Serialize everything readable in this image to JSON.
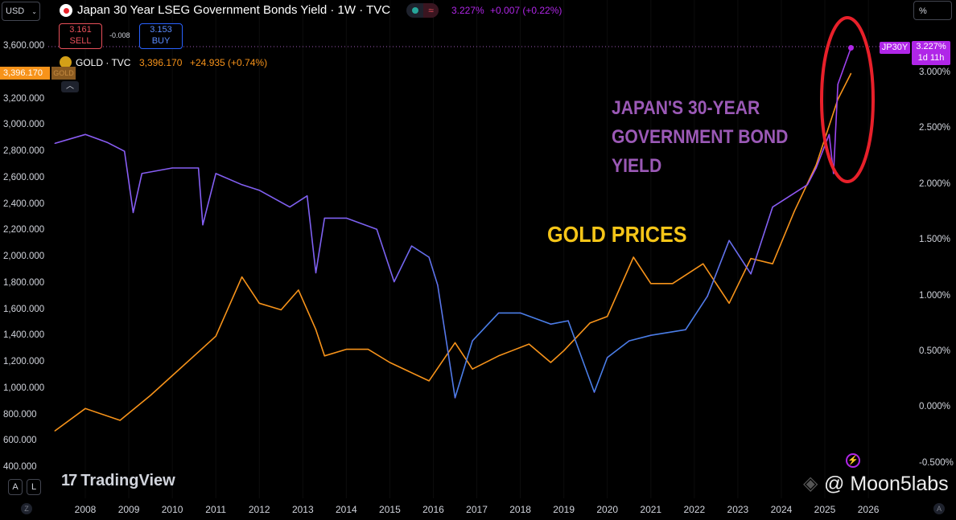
{
  "header": {
    "currency": "USD",
    "title": "Japan 30 Year LSEG Government Bonds Yield · 1W · TVC",
    "last": "3.227%",
    "change": "+0.007 (+0.22%)",
    "sell_price": "3.161",
    "sell_label": "SELL",
    "spread": "-0.008",
    "buy_price": "3.153",
    "buy_label": "BUY",
    "right_scale": "%"
  },
  "gold_legend": {
    "name": "GOLD · TVC",
    "last": "3,396.170",
    "change": "+24.935 (+0.74%)",
    "price_tag": "3,396.170",
    "tag_label": "GOLD"
  },
  "jp_tag": {
    "symbol": "JP30Y",
    "value": "3.227%",
    "countdown": "1d 11h"
  },
  "annotations": {
    "bond": [
      "JAPAN'S 30-YEAR",
      "GOVERNMENT BOND",
      "YIELD"
    ],
    "gold": "GOLD PRICES"
  },
  "footer": {
    "btn_a": "A",
    "btn_l": "L",
    "logo": "TradingView",
    "watermark": "@ Moon5labs",
    "z": "Z",
    "auto": "A"
  },
  "colors": {
    "gold": "#f7931a",
    "yield": "#8c5cf5",
    "yield_mid": "#4a7ee8",
    "circle": "#e8202a",
    "bond_text": "#9b59b6",
    "gold_text": "#f5c518",
    "tag": "#b026e8"
  },
  "chart_data": {
    "type": "line",
    "x_ticks": [
      "2008",
      "2009",
      "2010",
      "2011",
      "2012",
      "2013",
      "2014",
      "2015",
      "2016",
      "2017",
      "2018",
      "2019",
      "2020",
      "2021",
      "2022",
      "2023",
      "2024",
      "2025",
      "2026"
    ],
    "left_axis": {
      "ticks": [
        "3,600.000",
        "3,200.000",
        "3,000.000",
        "2,800.000",
        "2,600.000",
        "2,400.000",
        "2,200.000",
        "2,000.000",
        "1,800.000",
        "1,600.000",
        "1,400.000",
        "1,200.000",
        "1,000.000",
        "800.000",
        "600.000",
        "400.000"
      ],
      "range": [
        400,
        3600
      ]
    },
    "right_axis": {
      "ticks": [
        "3.000%",
        "2.500%",
        "2.000%",
        "1.500%",
        "1.000%",
        "0.500%",
        "0.000%",
        "-0.500%"
      ],
      "range": [
        -0.5,
        3.0
      ]
    },
    "series": [
      {
        "name": "GOLD",
        "axis": "left",
        "points": [
          [
            2007.3,
            680
          ],
          [
            2008.0,
            850
          ],
          [
            2008.8,
            760
          ],
          [
            2009.5,
            950
          ],
          [
            2010.0,
            1100
          ],
          [
            2010.5,
            1250
          ],
          [
            2011.0,
            1400
          ],
          [
            2011.6,
            1850
          ],
          [
            2012.0,
            1650
          ],
          [
            2012.5,
            1600
          ],
          [
            2012.9,
            1750
          ],
          [
            2013.3,
            1450
          ],
          [
            2013.5,
            1250
          ],
          [
            2014.0,
            1300
          ],
          [
            2014.5,
            1300
          ],
          [
            2015.0,
            1200
          ],
          [
            2015.9,
            1060
          ],
          [
            2016.5,
            1350
          ],
          [
            2016.9,
            1150
          ],
          [
            2017.5,
            1250
          ],
          [
            2018.2,
            1340
          ],
          [
            2018.7,
            1200
          ],
          [
            2019.0,
            1290
          ],
          [
            2019.6,
            1500
          ],
          [
            2020.0,
            1550
          ],
          [
            2020.6,
            2000
          ],
          [
            2021.0,
            1800
          ],
          [
            2021.5,
            1800
          ],
          [
            2022.2,
            1950
          ],
          [
            2022.8,
            1650
          ],
          [
            2023.3,
            1990
          ],
          [
            2023.8,
            1950
          ],
          [
            2024.3,
            2350
          ],
          [
            2024.8,
            2700
          ],
          [
            2025.3,
            3200
          ],
          [
            2025.6,
            3396
          ]
        ]
      },
      {
        "name": "JP30Y",
        "axis": "right",
        "points": [
          [
            2007.3,
            2.37
          ],
          [
            2008.0,
            2.45
          ],
          [
            2008.5,
            2.38
          ],
          [
            2008.9,
            2.3
          ],
          [
            2009.1,
            1.75
          ],
          [
            2009.3,
            2.1
          ],
          [
            2010.0,
            2.15
          ],
          [
            2010.6,
            2.15
          ],
          [
            2010.7,
            1.64
          ],
          [
            2011.0,
            2.1
          ],
          [
            2011.6,
            2.0
          ],
          [
            2012.0,
            1.95
          ],
          [
            2012.7,
            1.8
          ],
          [
            2013.1,
            1.9
          ],
          [
            2013.3,
            1.21
          ],
          [
            2013.5,
            1.7
          ],
          [
            2014.0,
            1.7
          ],
          [
            2014.7,
            1.6
          ],
          [
            2015.1,
            1.13
          ],
          [
            2015.5,
            1.45
          ],
          [
            2015.9,
            1.35
          ],
          [
            2016.1,
            1.1
          ],
          [
            2016.5,
            0.09
          ],
          [
            2016.9,
            0.6
          ],
          [
            2017.5,
            0.85
          ],
          [
            2018.0,
            0.85
          ],
          [
            2018.7,
            0.75
          ],
          [
            2019.1,
            0.78
          ],
          [
            2019.7,
            0.14
          ],
          [
            2020.0,
            0.45
          ],
          [
            2020.5,
            0.6
          ],
          [
            2021.0,
            0.65
          ],
          [
            2021.8,
            0.7
          ],
          [
            2022.3,
            1.0
          ],
          [
            2022.8,
            1.5
          ],
          [
            2023.3,
            1.2
          ],
          [
            2023.8,
            1.8
          ],
          [
            2024.2,
            1.9
          ],
          [
            2024.6,
            2.0
          ],
          [
            2024.8,
            2.15
          ],
          [
            2025.1,
            2.45
          ],
          [
            2025.2,
            2.1
          ],
          [
            2025.3,
            2.9
          ],
          [
            2025.6,
            3.227
          ]
        ]
      }
    ]
  }
}
